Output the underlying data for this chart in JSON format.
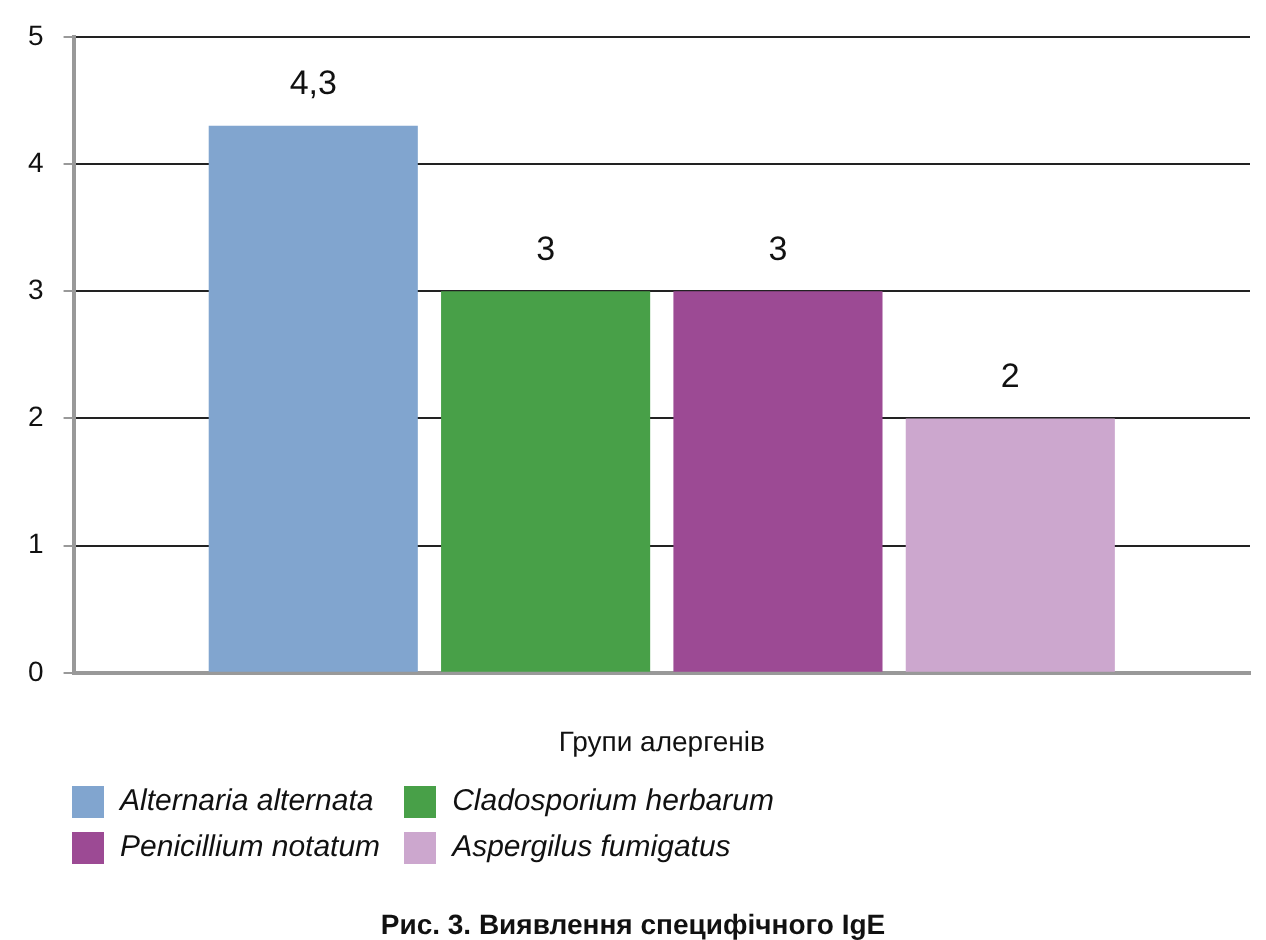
{
  "chart_data": {
    "type": "bar",
    "title": "Рис. 3. Виявлення специфічного IgE",
    "xlabel": "Групи алергенів",
    "categories": [
      null
    ],
    "series": [
      {
        "name": "Alternaria alternata",
        "color": "#81a5cf",
        "values": [
          4.3
        ],
        "value_labels": [
          "4,3"
        ]
      },
      {
        "name": "Cladosporium herbarum",
        "color": "#48a048",
        "values": [
          3
        ],
        "value_labels": [
          "3"
        ]
      },
      {
        "name": "Penicillium notatum",
        "color": "#9c4a94",
        "values": [
          3
        ],
        "value_labels": [
          "3"
        ]
      },
      {
        "name": "Aspergilus fumigatus",
        "color": "#cca7ce",
        "values": [
          2
        ],
        "value_labels": [
          "2"
        ]
      }
    ],
    "ylim": [
      0,
      5
    ],
    "yticks": [
      0,
      1,
      2,
      3,
      4,
      5
    ],
    "grid": "y",
    "legend": "bottom left"
  }
}
